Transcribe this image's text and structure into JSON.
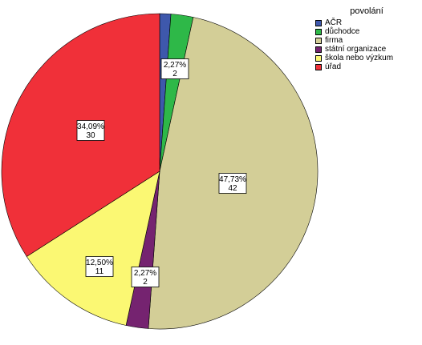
{
  "chart_data": {
    "type": "pie",
    "legend_title": "povolání",
    "legend_position": "top-right",
    "slices": [
      {
        "name": "AČR",
        "value": 1,
        "percent": "",
        "color": "#3e58ac"
      },
      {
        "name": "důchodce",
        "value": 2,
        "percent": "2,27%",
        "color": "#2eb848"
      },
      {
        "name": "firma",
        "value": 42,
        "percent": "47,73%",
        "color": "#d3ce97"
      },
      {
        "name": "státní organizace",
        "value": 2,
        "percent": "2,27%",
        "color": "#752370"
      },
      {
        "name": "škola nebo výzkum",
        "value": 11,
        "percent": "12,50%",
        "color": "#fbf873"
      },
      {
        "name": "úřad",
        "value": 30,
        "percent": "34,09%",
        "color": "#f03039"
      }
    ]
  }
}
